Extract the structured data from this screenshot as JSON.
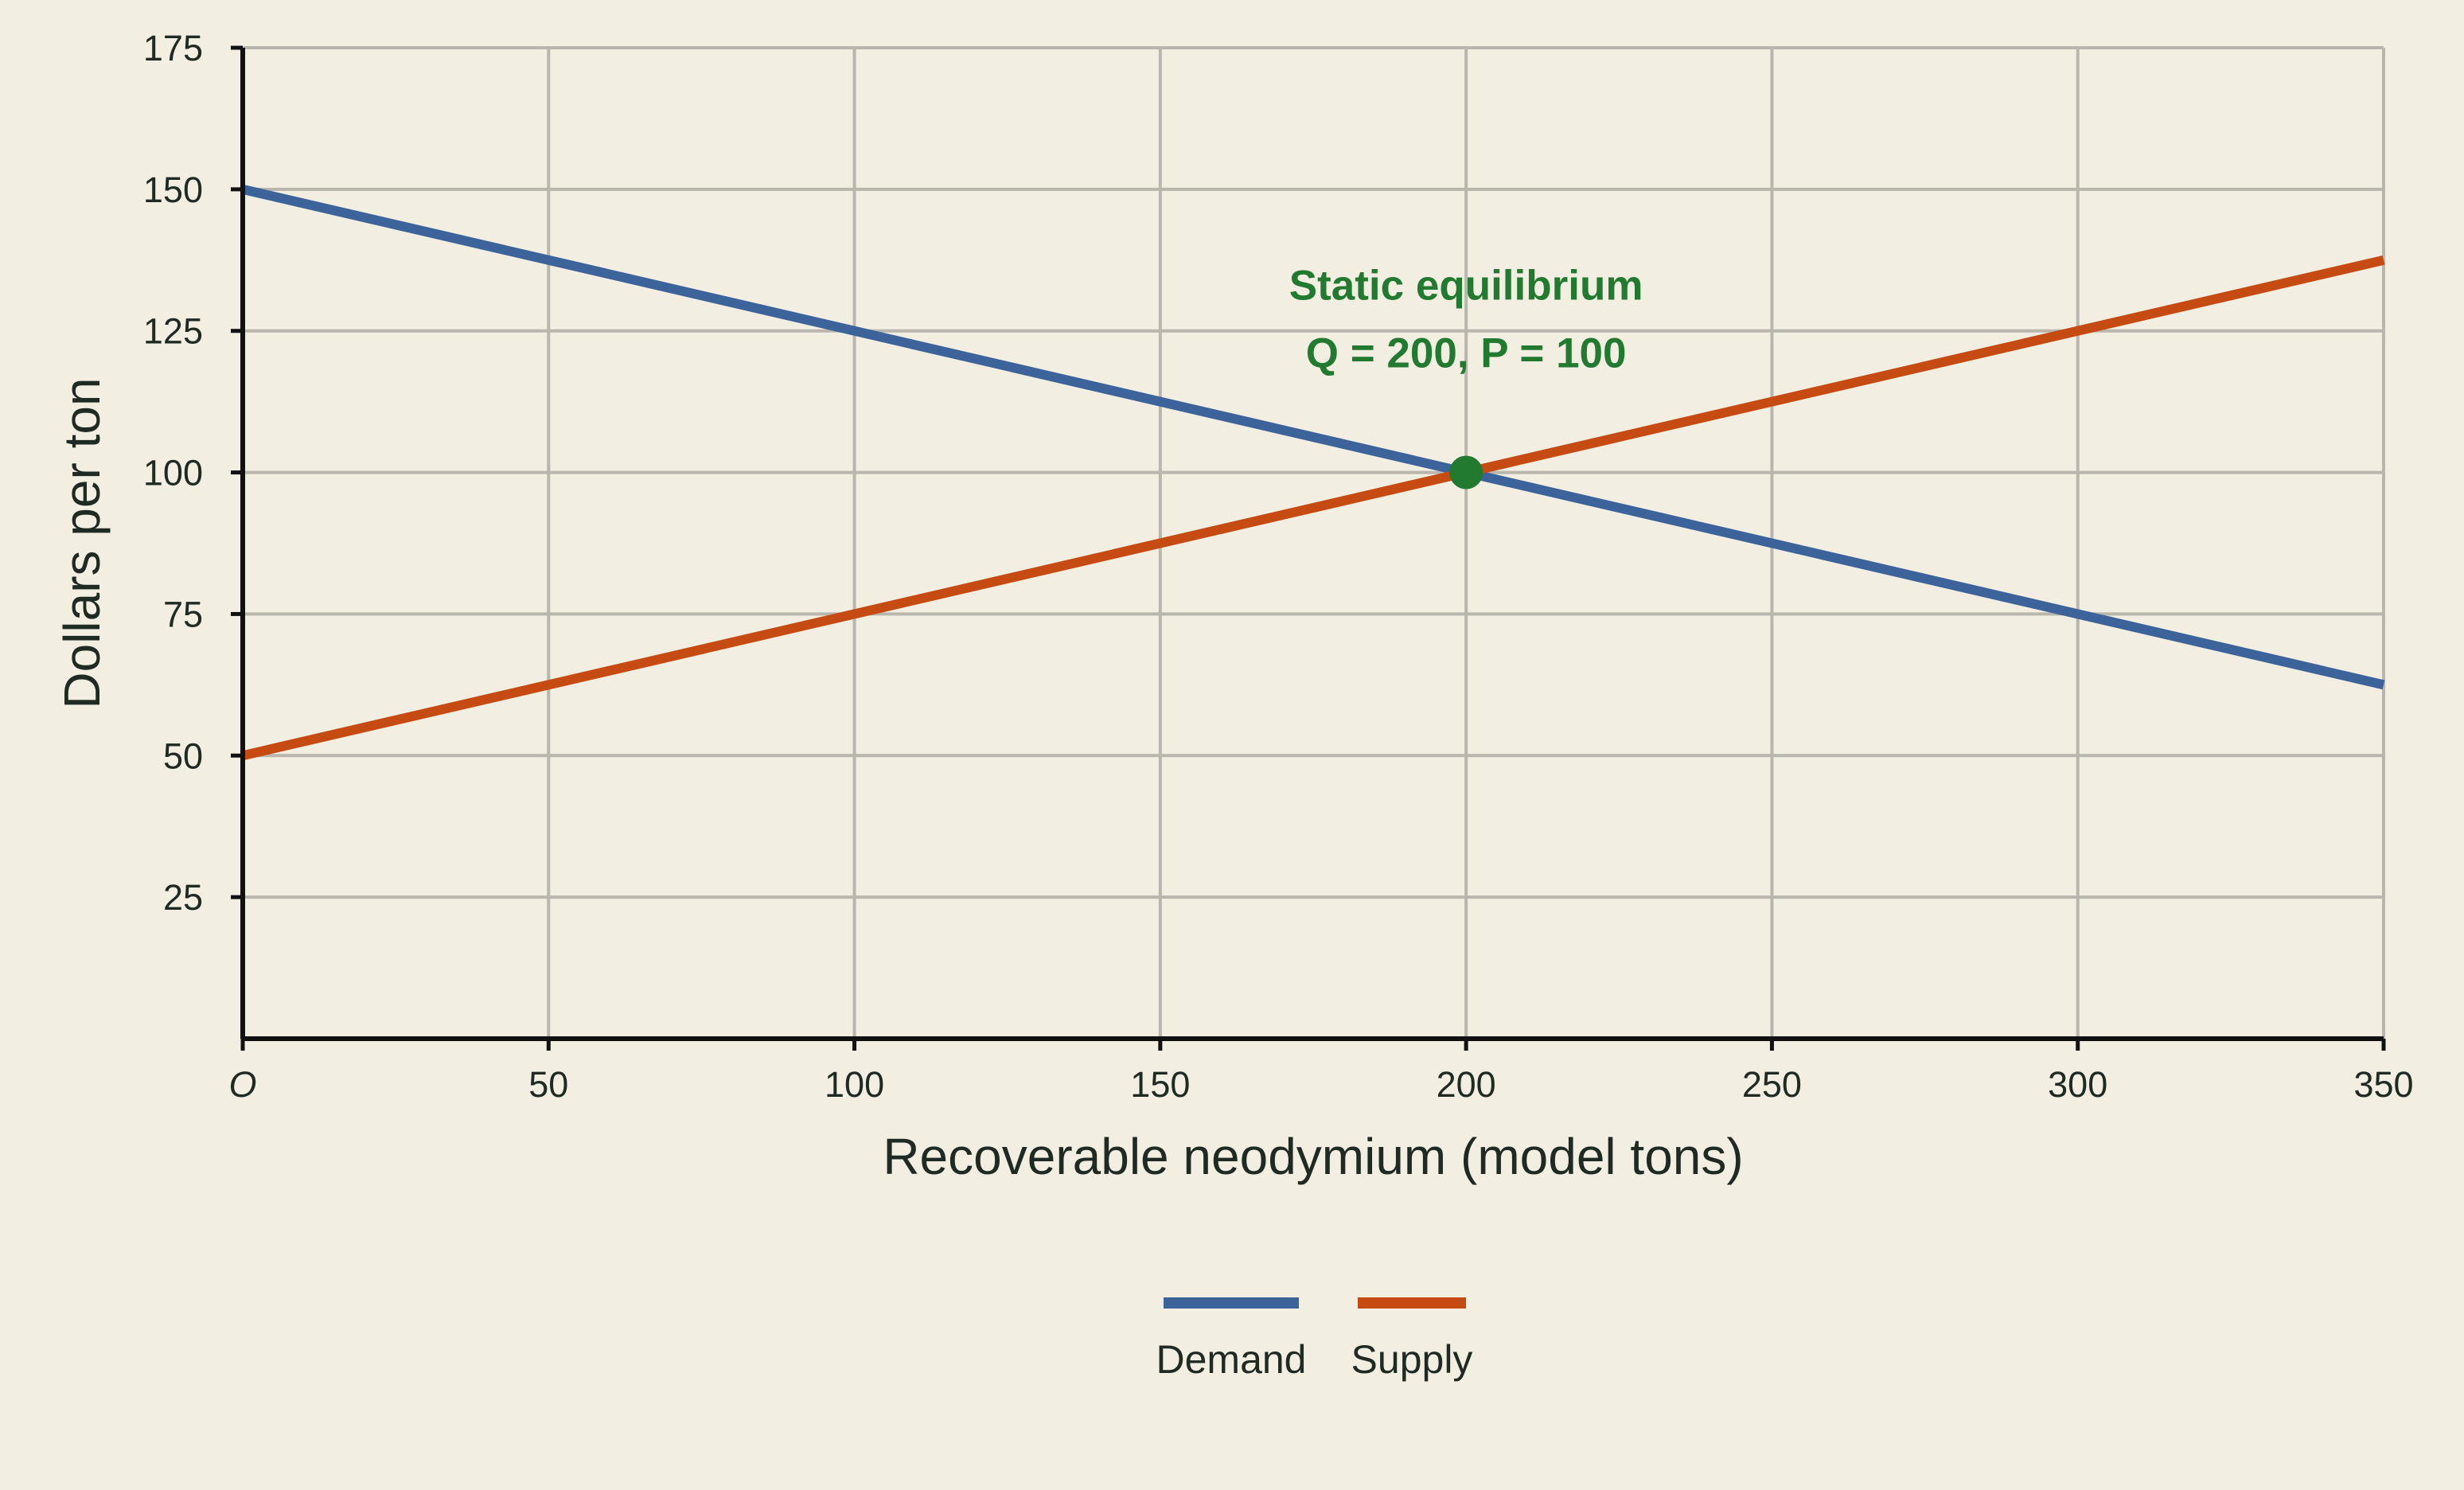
{
  "chart_data": {
    "type": "line",
    "title": "",
    "xlabel": "Recoverable neodymium (model tons)",
    "ylabel": "Dollars per ton",
    "xlim": [
      0,
      350
    ],
    "ylim": [
      0,
      175
    ],
    "x_ticks": [
      0,
      50,
      100,
      150,
      200,
      250,
      300,
      350
    ],
    "x_tick_labels": [
      "O",
      "50",
      "100",
      "150",
      "200",
      "250",
      "300",
      "350"
    ],
    "y_ticks": [
      25,
      50,
      75,
      100,
      125,
      150,
      175
    ],
    "y_tick_labels": [
      "25",
      "50",
      "75",
      "100",
      "125",
      "150",
      "175"
    ],
    "grid": true,
    "legend_position": "bottom-center",
    "series": [
      {
        "name": "Demand",
        "color": "#3d639b",
        "x": [
          0,
          350
        ],
        "y": [
          150,
          62.5
        ]
      },
      {
        "name": "Supply",
        "color": "#c64b12",
        "x": [
          0,
          350
        ],
        "y": [
          50,
          137.5
        ]
      }
    ],
    "annotations": [
      {
        "point": [
          200,
          100
        ],
        "lines": [
          "Static equilibrium",
          "Q = 200, P = 100"
        ],
        "color": "#217a2f"
      }
    ]
  },
  "colors": {
    "background": "#f2eee2",
    "grid": "#b8b6ad",
    "axis": "#111111",
    "text": "#1f2a22"
  }
}
